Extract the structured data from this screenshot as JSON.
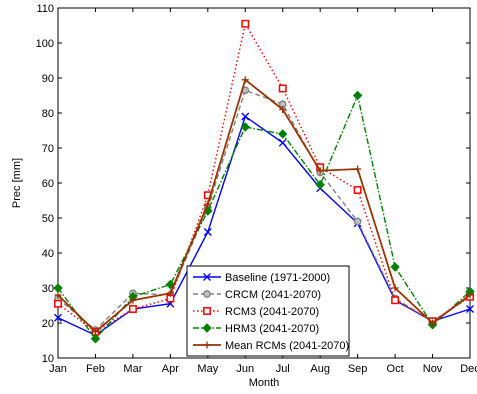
{
  "chart_data": {
    "type": "line",
    "title": "",
    "xlabel": "Month",
    "ylabel": "Prec [mm]",
    "ylim": [
      10,
      110
    ],
    "yticks": [
      10,
      20,
      30,
      40,
      50,
      60,
      70,
      80,
      90,
      100,
      110
    ],
    "categories": [
      "Jan",
      "Feb",
      "Mar",
      "Apr",
      "May",
      "Jun",
      "Jul",
      "Aug",
      "Sep",
      "Oct",
      "Nov",
      "Dec"
    ],
    "grid": false,
    "legend_position": "bottom-center",
    "series": [
      {
        "name": "Baseline (1971-2000)",
        "color": "#0000ff",
        "dash": "solid",
        "marker": "x",
        "values": [
          21.5,
          16.5,
          24,
          25.5,
          46,
          79,
          71.5,
          58.5,
          48.5,
          26.5,
          20.5,
          24
        ]
      },
      {
        "name": "CRCM (2041-2070)",
        "color": "#808080",
        "dash": "dashed",
        "marker": "circle",
        "values": [
          27,
          18,
          28.5,
          28,
          53,
          86.5,
          82.5,
          63,
          49,
          27,
          20.5,
          27.5
        ]
      },
      {
        "name": "RCM3 (2041-2070)",
        "color": "#ff0000",
        "dash": "dotted",
        "marker": "square",
        "values": [
          25.5,
          17.5,
          24,
          27,
          56.5,
          105.5,
          87,
          64.5,
          58,
          26.5,
          20.5,
          27.5
        ]
      },
      {
        "name": "HRM3 (2041-2070)",
        "color": "#008000",
        "dash": "dashdot",
        "marker": "diamond",
        "values": [
          30,
          15.5,
          27.5,
          31,
          52,
          76,
          74,
          59.5,
          85,
          36,
          19.5,
          29
        ]
      },
      {
        "name": "Mean RCMs (2041-2070)",
        "color": "#993300",
        "dash": "solid",
        "marker": "plus",
        "values": [
          28,
          17.5,
          26.5,
          28.5,
          54,
          89.5,
          81,
          63.5,
          64,
          30,
          20,
          28
        ]
      }
    ]
  }
}
